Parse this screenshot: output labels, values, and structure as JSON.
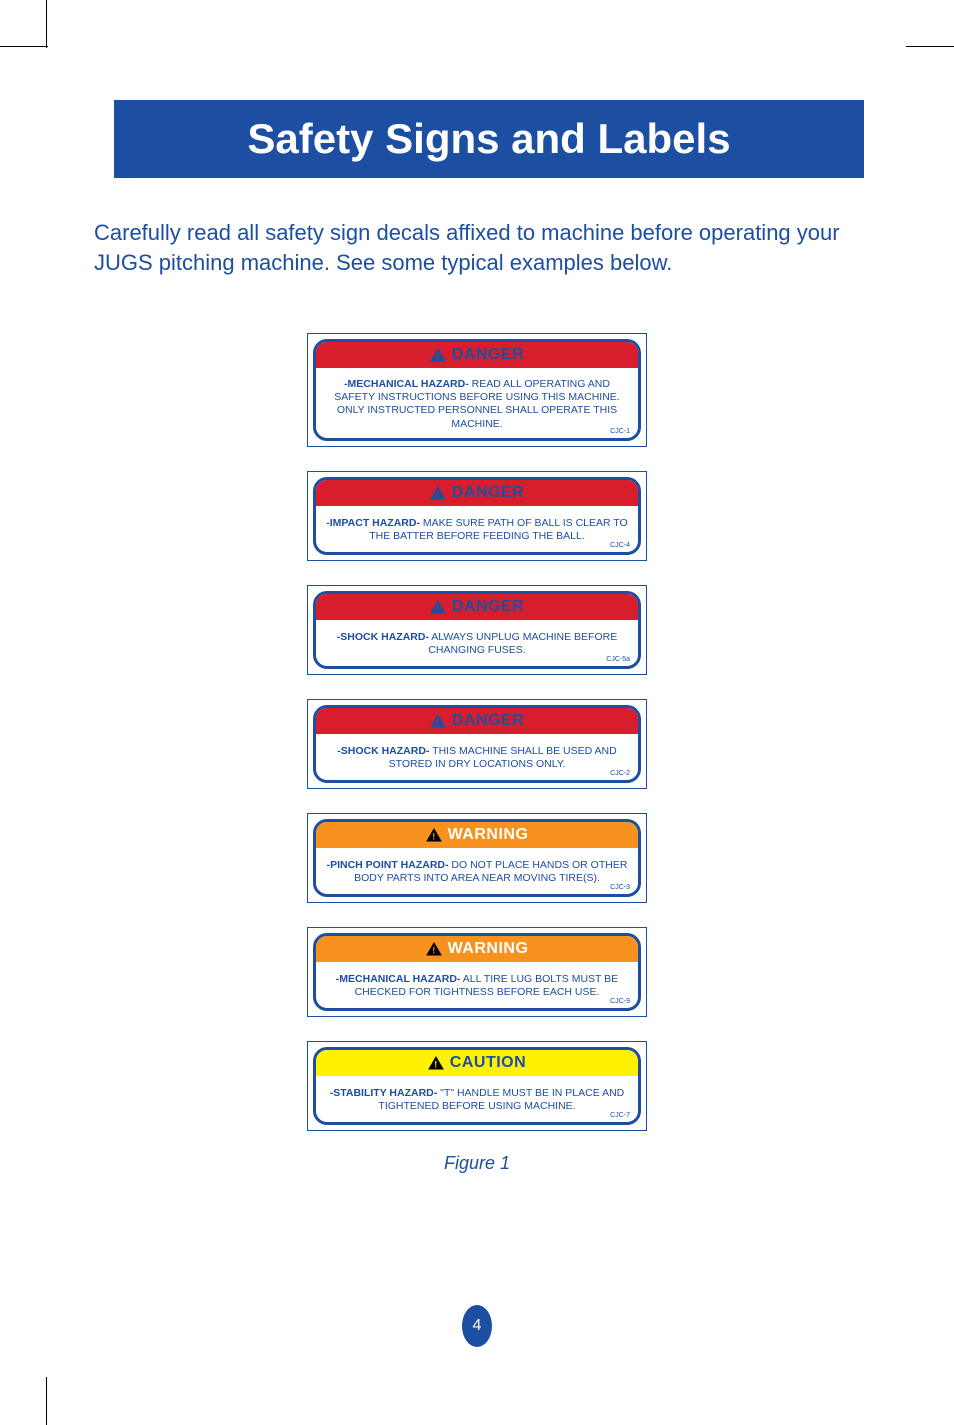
{
  "page": {
    "title": "Safety Signs and Labels",
    "intro": "Carefully read all safety sign decals affixed to machine before operating your JUGS pitching machine. See some typical examples below.",
    "figure_label": "Figure 1",
    "page_number": "4"
  },
  "colors": {
    "brand_blue": "#1c4ea1",
    "danger_red": "#d81e2c",
    "warning_orange": "#f7921e",
    "caution_yellow": "#fff200",
    "white": "#ffffff"
  },
  "signs": [
    {
      "level": "danger",
      "header": "DANGER",
      "hazard": "-MECHANICAL HAZARD-",
      "text": " READ ALL OPERATING AND SAFETY INSTRUCTIONS BEFORE USING THIS MACHINE. ONLY INSTRUCTED PERSONNEL SHALL OPERATE THIS MACHINE.",
      "code": "CJC-1",
      "tall": true
    },
    {
      "level": "danger",
      "header": "DANGER",
      "hazard": "-IMPACT HAZARD-",
      "text": " MAKE SURE PATH OF BALL IS CLEAR TO THE BATTER BEFORE FEEDING THE BALL.",
      "code": "CJC-4",
      "tall": false
    },
    {
      "level": "danger",
      "header": "DANGER",
      "hazard": "-SHOCK HAZARD-",
      "text": " ALWAYS UNPLUG MACHINE BEFORE CHANGING FUSES.",
      "code": "CJC-5a",
      "tall": false
    },
    {
      "level": "danger",
      "header": "DANGER",
      "hazard": "-SHOCK HAZARD-",
      "text": " THIS MACHINE SHALL BE USED AND STORED IN DRY LOCATIONS ONLY.",
      "code": "CJC-2",
      "tall": false
    },
    {
      "level": "warning",
      "header": "WARNING",
      "hazard": "-PINCH POINT HAZARD-",
      "text": " DO NOT PLACE HANDS OR OTHER BODY PARTS INTO AREA NEAR MOVING TIRE(S).",
      "code": "CJC-3",
      "tall": false
    },
    {
      "level": "warning",
      "header": "WARNING",
      "hazard": "-MECHANICAL HAZARD-",
      "text": " ALL TIRE LUG BOLTS MUST BE CHECKED FOR TIGHTNESS BEFORE EACH USE.",
      "code": "CJC-9",
      "tall": false
    },
    {
      "level": "caution",
      "header": "CAUTION",
      "hazard": "-STABILITY HAZARD-",
      "text": " \"T\" HANDLE MUST BE IN PLACE AND TIGHTENED BEFORE USING MACHINE.",
      "code": "CJC-7",
      "tall": false
    }
  ]
}
